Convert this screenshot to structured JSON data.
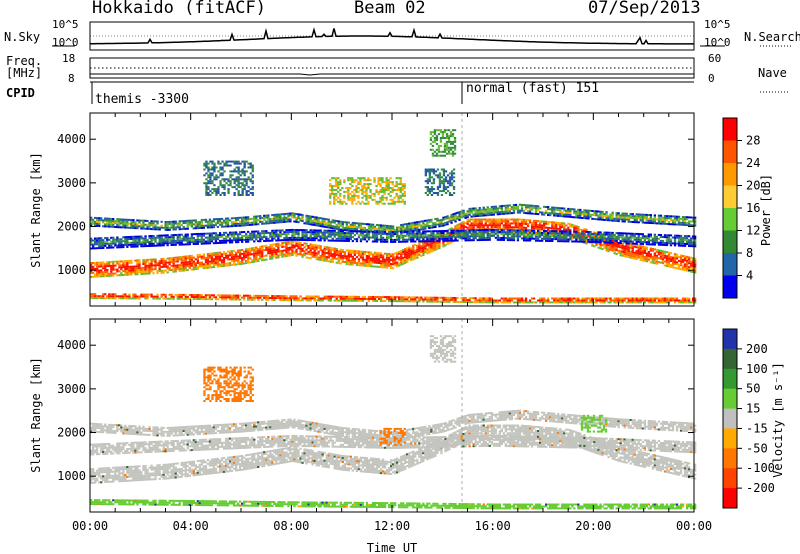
{
  "header": {
    "station": "Hokkaido (fitACF)",
    "beam": "Beam 02",
    "date": "07/Sep/2013"
  },
  "top_panels": {
    "nsky_label": "N.Sky",
    "nsky_ticks": [
      "10^5",
      "10^0"
    ],
    "nsearch_label": "N.Search",
    "nsearch_ticks": [
      "10^5",
      "10^0"
    ],
    "freq_label_1": "Freq.",
    "freq_label_2": "[MHz]",
    "freq_ticks": [
      "18",
      "8"
    ],
    "nave_label": "Nave",
    "nave_ticks": [
      "60",
      "0"
    ],
    "cpid_label": "CPID",
    "cpid_programs": [
      {
        "name": "themis -3300",
        "start_hour": 0
      },
      {
        "name": "normal (fast) 151",
        "start_hour": 14.8
      }
    ]
  },
  "chart_data": [
    {
      "type": "heatmap",
      "name": "power",
      "ylabel": "Slant Range [km]",
      "xlabel": "",
      "xlim": [
        0,
        24
      ],
      "ylim": [
        180,
        4600
      ],
      "y_ticks": [
        "1000",
        "2000",
        "3000",
        "4000"
      ],
      "colorbar_label": "Power [dB]",
      "colorbar_ticks": [
        "28",
        "24",
        "20",
        "16",
        "12",
        "8",
        "4"
      ],
      "colorbar_colors": [
        "#ff0000",
        "#ff5500",
        "#ff9900",
        "#ffcc33",
        "#66cc33",
        "#338833",
        "#2266aa",
        "#0000ee"
      ],
      "bands": [
        {
          "x": [
            0,
            3,
            6,
            8,
            10,
            12,
            14,
            15,
            17,
            19,
            21,
            24
          ],
          "y": [
            1000,
            1100,
            1300,
            1500,
            1300,
            1200,
            1700,
            2000,
            2000,
            1900,
            1500,
            1100
          ],
          "width": 350,
          "value": 28
        },
        {
          "x": [
            0,
            3,
            6,
            8,
            10,
            12,
            14,
            15,
            17,
            19,
            21,
            24
          ],
          "y": [
            2100,
            2000,
            2100,
            2200,
            2000,
            1900,
            2100,
            2300,
            2400,
            2300,
            2200,
            2100
          ],
          "width": 200,
          "value": 16
        },
        {
          "x": [
            0,
            4,
            8,
            12,
            16,
            20,
            24
          ],
          "y": [
            400,
            380,
            350,
            330,
            300,
            300,
            300
          ],
          "width": 120,
          "value": 28
        },
        {
          "x": [
            0,
            4,
            8,
            12,
            16,
            20,
            24
          ],
          "y": [
            1600,
            1700,
            1800,
            1750,
            1800,
            1750,
            1650
          ],
          "width": 250,
          "value": 12
        }
      ],
      "patches": [
        {
          "x": [
            4.5,
            6.5
          ],
          "y": [
            2700,
            3500
          ],
          "value": 8
        },
        {
          "x": [
            13.5,
            14.5
          ],
          "y": [
            3600,
            4200
          ],
          "value": 12
        },
        {
          "x": [
            13.3,
            14.5
          ],
          "y": [
            2700,
            3300
          ],
          "value": 8
        },
        {
          "x": [
            9.5,
            12.5
          ],
          "y": [
            2500,
            3100
          ],
          "value": 16
        }
      ]
    },
    {
      "type": "heatmap",
      "name": "velocity",
      "ylabel": "Slant Range [km]",
      "xlabel": "Time UT",
      "xlim": [
        0,
        24
      ],
      "ylim": [
        180,
        4600
      ],
      "x_ticks": [
        "00:00",
        "04:00",
        "08:00",
        "12:00",
        "16:00",
        "20:00",
        "00:00"
      ],
      "y_ticks": [
        "1000",
        "2000",
        "3000",
        "4000"
      ],
      "colorbar_label": "Velocity [m s⁻¹]",
      "colorbar_ticks": [
        "200",
        "100",
        "50",
        "15",
        "-15",
        "-50",
        "-100",
        "-200"
      ],
      "colorbar_colors": [
        "#2233aa",
        "#336633",
        "#339933",
        "#66cc33",
        "#c0c0c0",
        "#ffaa00",
        "#ff7700",
        "#ff4400",
        "#ff0000"
      ],
      "bands": [
        {
          "x": [
            0,
            3,
            6,
            8,
            10,
            12,
            14,
            15,
            17,
            19,
            21,
            24
          ],
          "y": [
            1000,
            1100,
            1300,
            1500,
            1300,
            1200,
            1700,
            2000,
            2000,
            1900,
            1500,
            1100
          ],
          "width": 350,
          "value": 0
        },
        {
          "x": [
            0,
            3,
            6,
            8,
            10,
            12,
            14,
            15,
            17,
            19,
            21,
            24
          ],
          "y": [
            2100,
            2000,
            2100,
            2200,
            2000,
            1900,
            2100,
            2300,
            2400,
            2300,
            2200,
            2100
          ],
          "width": 200,
          "value": 0
        },
        {
          "x": [
            0,
            4,
            8,
            12,
            16,
            20,
            24
          ],
          "y": [
            400,
            380,
            350,
            330,
            300,
            300,
            300
          ],
          "width": 120,
          "value": 30
        },
        {
          "x": [
            0,
            4,
            8,
            12,
            16,
            20,
            24
          ],
          "y": [
            1600,
            1700,
            1800,
            1750,
            1800,
            1750,
            1650
          ],
          "width": 250,
          "value": 0
        }
      ],
      "patches": [
        {
          "x": [
            4.5,
            6.5
          ],
          "y": [
            2700,
            3500
          ],
          "value": -60
        },
        {
          "x": [
            13.5,
            14.5
          ],
          "y": [
            3600,
            4200
          ],
          "value": 0
        },
        {
          "x": [
            11.5,
            12.5
          ],
          "y": [
            1700,
            2100
          ],
          "value": -60
        },
        {
          "x": [
            19.5,
            20.5
          ],
          "y": [
            2000,
            2400
          ],
          "value": 30
        }
      ]
    }
  ]
}
